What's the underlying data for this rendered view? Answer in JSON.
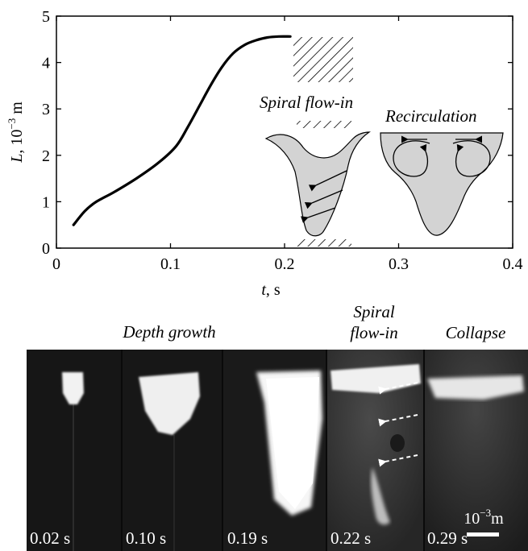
{
  "chart_data": {
    "type": "line",
    "xlabel": "t",
    "xlabel_unit": ", s",
    "ylabel": "L",
    "ylabel_unit": ", 10",
    "ylabel_exp": "−3",
    "ylabel_unit_tail": " m",
    "xlim": [
      0,
      0.4
    ],
    "ylim": [
      0,
      5
    ],
    "xticks": [
      "0",
      "0.1",
      "0.2",
      "0.3",
      "0.4"
    ],
    "yticks": [
      "0",
      "1",
      "2",
      "3",
      "4",
      "5"
    ],
    "series": [
      {
        "x": [
          0.015,
          0.025,
          0.035,
          0.05,
          0.07,
          0.09,
          0.105,
          0.115,
          0.125,
          0.135,
          0.145,
          0.155,
          0.165,
          0.175,
          0.185,
          0.195,
          0.205
        ],
        "y": [
          0.5,
          0.8,
          1.0,
          1.2,
          1.5,
          1.85,
          2.2,
          2.6,
          3.05,
          3.5,
          3.9,
          4.2,
          4.38,
          4.48,
          4.54,
          4.56,
          4.56
        ]
      }
    ],
    "annotations": [
      "Spiral flow-in",
      "Recirculation"
    ]
  },
  "captions": {
    "depth_growth": "Depth growth",
    "spiral_line1": "Spiral",
    "spiral_line2": "flow-in",
    "collapse": "Collapse"
  },
  "frames": [
    {
      "time": "0.02 s"
    },
    {
      "time": "0.10 s"
    },
    {
      "time": "0.19 s"
    },
    {
      "time": "0.22 s"
    },
    {
      "time": "0.29 s"
    }
  ],
  "scale_bar": {
    "base": "10",
    "exp": "−3",
    "unit": "m"
  },
  "colors": {
    "schematic_fill": "#d3d3d3",
    "line": "#000000"
  }
}
